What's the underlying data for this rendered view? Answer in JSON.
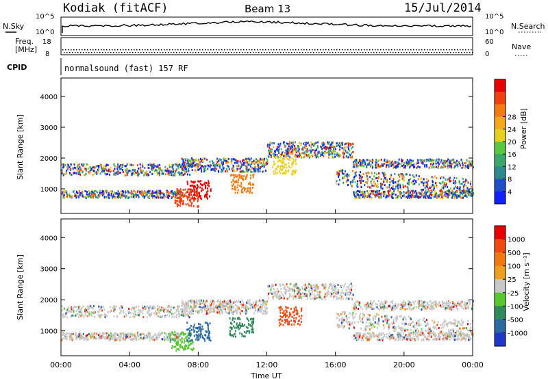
{
  "header": {
    "station": "Kodiak (fitACF)",
    "beam": "Beam 13",
    "date": "15/Jul/2014"
  },
  "status_panel": {
    "nsky_label": "N.Sky",
    "nsky_ticks": [
      "10^5",
      "10^0"
    ],
    "nsearch_label": "N.Search",
    "nsearch_ticks": [
      "10^5",
      "10^0"
    ],
    "freq_label_1": "Freq.",
    "freq_label_2": "[MHz]",
    "freq_ticks": [
      "18",
      "8"
    ],
    "nave_label": "Nave",
    "nave_ticks": [
      "60",
      "0"
    ],
    "cpid_label": "CPID",
    "cpid_value": "normalsound (fast) 157 RF"
  },
  "chart_data": [
    {
      "type": "heatmap",
      "name": "power-panel",
      "ylabel": "Slant Range [km]",
      "xlabel": "",
      "yticks": [
        "1000",
        "2000",
        "3000",
        "4000"
      ],
      "ylim": [
        200,
        4600
      ],
      "xlim_hours": [
        0,
        24
      ],
      "colorbar": {
        "label": "Power [dB]",
        "ticks": [
          "4",
          "8",
          "12",
          "16",
          "20",
          "24",
          "28"
        ],
        "colors": [
          "#1020ff",
          "#2050c8",
          "#2f8a8f",
          "#3aa86a",
          "#58c840",
          "#e8d020",
          "#f5a818",
          "#f57a10",
          "#f04010",
          "#e80000"
        ]
      }
    },
    {
      "type": "heatmap",
      "name": "velocity-panel",
      "ylabel": "Slant Range [km]",
      "xlabel": "Time UT",
      "yticks": [
        "1000",
        "2000",
        "3000",
        "4000"
      ],
      "ylim": [
        200,
        4600
      ],
      "xticks": [
        "00:00",
        "04:00",
        "08:00",
        "12:00",
        "16:00",
        "20:00",
        "00:00"
      ],
      "colorbar": {
        "label": "Velocity [m s⁻¹]",
        "ticks": [
          "1000",
          "500",
          "100",
          "25",
          "-25",
          "-100",
          "-500",
          "-1000"
        ],
        "colors": [
          "#2038c8",
          "#2a6aa0",
          "#2e8a5a",
          "#58c830",
          "#c8c8c8",
          "#f0a020",
          "#f07a10",
          "#f04a10",
          "#e80000"
        ]
      }
    }
  ]
}
